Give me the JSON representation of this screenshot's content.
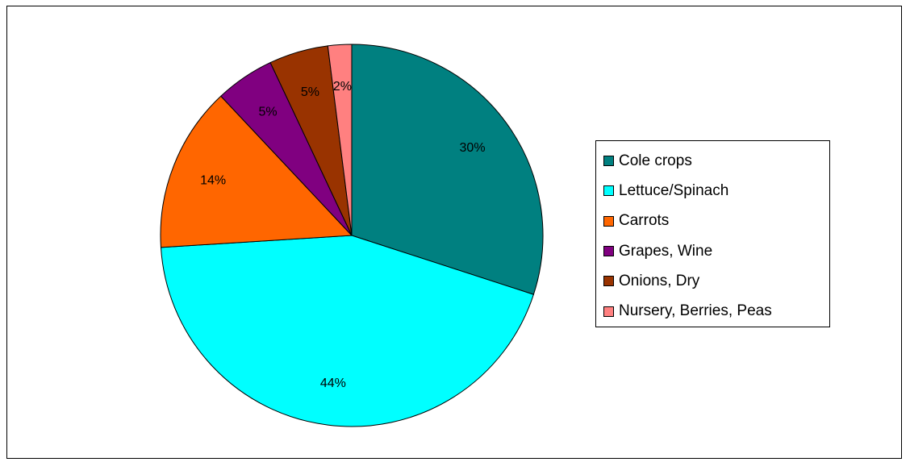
{
  "chart_data": {
    "type": "pie",
    "title": "",
    "slices": [
      {
        "label": "Cole crops",
        "value": 30,
        "display": "30%",
        "color": "#008080"
      },
      {
        "label": "Lettuce/Spinach",
        "value": 44,
        "display": "44%",
        "color": "#00FFFF"
      },
      {
        "label": "Carrots",
        "value": 14,
        "display": "14%",
        "color": "#FF6600"
      },
      {
        "label": "Grapes, Wine",
        "value": 5,
        "display": "5%",
        "color": "#800080"
      },
      {
        "label": "Onions, Dry",
        "value": 5,
        "display": "5%",
        "color": "#993300"
      },
      {
        "label": "Nursery, Berries, Peas",
        "value": 2,
        "display": "2%",
        "color": "#FF8080"
      }
    ],
    "legend_placement": "right"
  }
}
